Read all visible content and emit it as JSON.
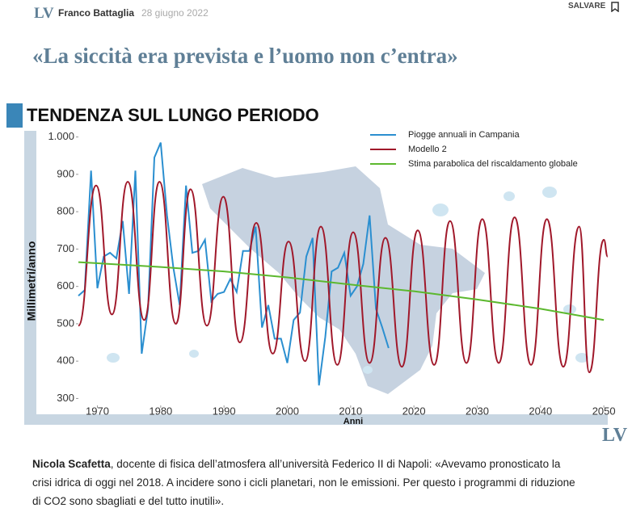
{
  "header": {
    "logo": "LV",
    "author": "Franco Battaglia",
    "date": "28 giugno 2022",
    "save": "SALVARE"
  },
  "headline": "«La siccità era prevista e l’uomo non c’entra»",
  "section": "TENDENZA SUL LUNGO PERIODO",
  "chart_data": {
    "type": "line",
    "xlabel": "Anni",
    "ylabel": "Millimetri/anno",
    "xlim": [
      1967,
      2051
    ],
    "xticks": [
      1970,
      1980,
      1990,
      2000,
      2010,
      2020,
      2030,
      2040,
      2050
    ],
    "ylim": [
      275,
      1010
    ],
    "yticks": [
      300,
      400,
      500,
      600,
      700,
      800,
      900,
      {
        "value": 1000,
        "label": "1.000"
      }
    ],
    "legend": "upper right",
    "series": [
      {
        "name": "Piogge annuali in Campania",
        "color": "#2b8fd0",
        "smooth": false,
        "x": [
          1967,
          1968,
          1969,
          1970,
          1971,
          1972,
          1973,
          1974,
          1975,
          1976,
          1977,
          1978,
          1979,
          1980,
          1981,
          1982,
          1983,
          1984,
          1985,
          1986,
          1987,
          1988,
          1989,
          1990,
          1991,
          1992,
          1993,
          1994,
          1995,
          1996,
          1997,
          1998,
          1999,
          2000,
          2001,
          2002,
          2003,
          2004,
          2005,
          2006,
          2007,
          2008,
          2009,
          2010,
          2011,
          2012,
          2013,
          2014,
          2015,
          2016
        ],
        "values": [
          575,
          590,
          910,
          595,
          680,
          690,
          675,
          775,
          580,
          910,
          420,
          540,
          945,
          985,
          790,
          650,
          550,
          870,
          690,
          695,
          725,
          560,
          580,
          585,
          620,
          585,
          695,
          695,
          760,
          490,
          550,
          460,
          460,
          395,
          510,
          530,
          680,
          730,
          335,
          465,
          640,
          650,
          690,
          575,
          600,
          660,
          790,
          540,
          490,
          435
        ]
      },
      {
        "name": "Modello 2",
        "color": "#a0182a",
        "smooth": true,
        "x": [
          1967,
          1969.8,
          1972.3,
          1974.8,
          1977.4,
          1979.8,
          1982.4,
          1984.7,
          1987.3,
          1989.9,
          1992.5,
          1995.1,
          1997.7,
          2000.2,
          2002.8,
          2005.3,
          2007.9,
          2010.4,
          2013,
          2015.5,
          2018.1,
          2020.6,
          2023.2,
          2025.7,
          2028.3,
          2030.8,
          2033.4,
          2035.9,
          2038.5,
          2041,
          2043.6,
          2046.1,
          2047.7,
          2050,
          2050.6
        ],
        "values": [
          495,
          870,
          525,
          880,
          510,
          880,
          500,
          860,
          495,
          840,
          450,
          770,
          420,
          720,
          400,
          760,
          390,
          745,
          395,
          730,
          385,
          750,
          390,
          775,
          395,
          780,
          395,
          785,
          390,
          780,
          385,
          760,
          370,
          725,
          680
        ]
      },
      {
        "name": "Stima parabolica del riscaldamento globale",
        "color": "#5cb82e",
        "smooth": false,
        "x": [
          1967,
          1980,
          1990,
          2000,
          2010,
          2020,
          2030,
          2040,
          2050
        ],
        "values": [
          665,
          652,
          640,
          624,
          605,
          587,
          565,
          540,
          510
        ]
      }
    ]
  },
  "caption": {
    "author": "Nicola Scafetta",
    "text": ", docente di fisica dell’atmosfera all’università Federico II di Napoli: «Avevamo pronosticato la crisi idrica di oggi nel 2018. A incidere sono i cicli planetari, non le emissioni. Per questo i programmi di riduzione di CO2 sono sbagliati e del tutto inutili»."
  }
}
